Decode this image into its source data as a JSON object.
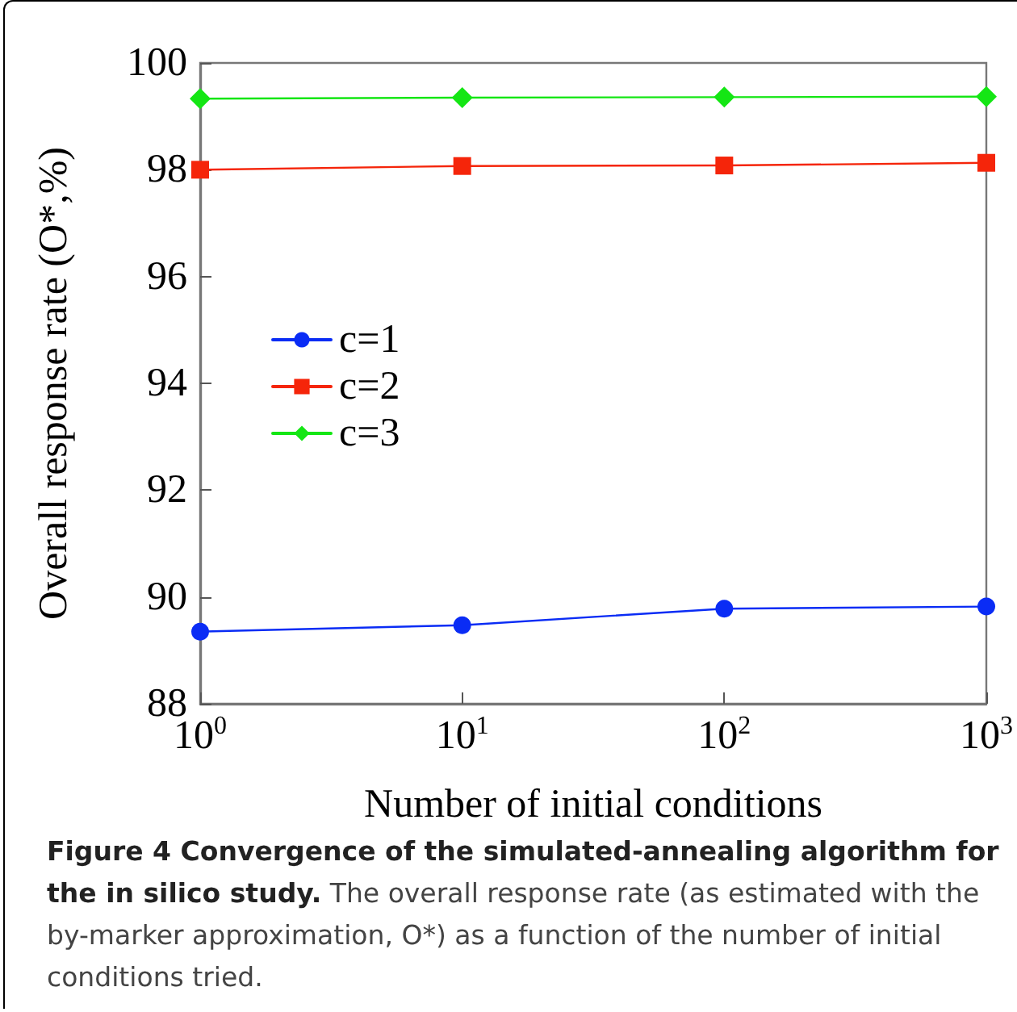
{
  "chart_data": {
    "type": "line",
    "title": "Figure 4 Convergence of the simulated-annealing algorithm for the in silico study.",
    "annotations": [
      "The overall response rate (as estimated with the by-marker approximation, O*) as a function of the number of initial conditions tried."
    ],
    "xlabel": "Number of initial conditions",
    "ylabel": "Overall response rate (O*,%)",
    "x": [
      1,
      10,
      100,
      1000
    ],
    "series": [
      {
        "name": "c=1",
        "color": "#0a2cf5",
        "marker": "circle",
        "values": [
          89.35,
          89.47,
          89.78,
          89.82
        ]
      },
      {
        "name": "c=2",
        "color": "#f5250a",
        "marker": "square",
        "values": [
          98.0,
          98.07,
          98.08,
          98.13
        ]
      },
      {
        "name": "c=3",
        "color": "#14e614",
        "marker": "diamond",
        "values": [
          99.33,
          99.35,
          99.36,
          99.37
        ]
      }
    ],
    "log": "x",
    "xlim": [
      1,
      1000
    ],
    "xticks": [
      {
        "value": 1,
        "label": "10$^{0}$"
      },
      {
        "value": 10,
        "label": "10$^{1}$"
      },
      {
        "value": 100,
        "label": "10$^{2}$"
      },
      {
        "value": 1000,
        "label": "10$^{3}$"
      }
    ],
    "ylim": [
      88,
      100
    ],
    "yticks": [
      88,
      90,
      92,
      94,
      96,
      98,
      100
    ],
    "grid": false,
    "legend": "left",
    "line_style": "solid"
  }
}
